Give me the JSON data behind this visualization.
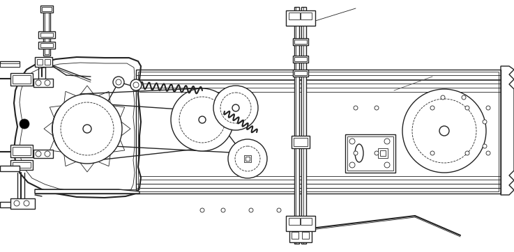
{
  "bg_color": "#ffffff",
  "line_color": "#222222",
  "fig_width": 7.37,
  "fig_height": 3.62,
  "dpi": 100
}
